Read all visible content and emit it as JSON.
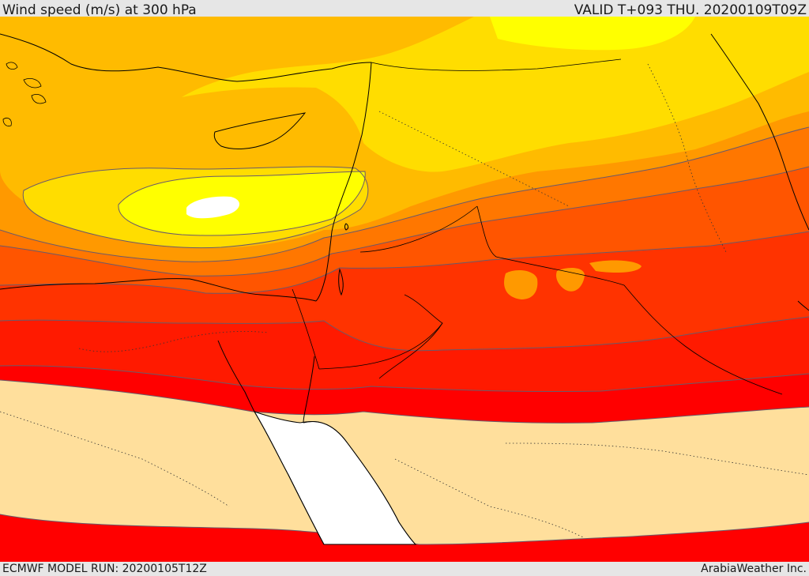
{
  "header": {
    "title": "Wind speed (m/s) at 300 hPa",
    "valid_time": "VALID T+093 THU. 20200109T09Z"
  },
  "footer": {
    "model_run": "ECMWF MODEL RUN: 20200105T12Z",
    "credit": "ArabiaWeather Inc."
  },
  "map": {
    "field": "wind speed at 300 hPa",
    "region": "Eastern Mediterranean, Levant, Egypt, Red Sea, Arabian Peninsula",
    "palette": {
      "calm": "#ffffff",
      "light": "#ffdf9c",
      "yellow": "#ffff00",
      "gold": "#ffdd00",
      "amber": "#ffbb00",
      "orange": "#ff9900",
      "dark_orange": "#ff7700",
      "red_orange": "#ff5500",
      "orange_red": "#ff3300",
      "bright_red": "#ff1a00",
      "red": "#ff0000",
      "sea": "#ffffff"
    }
  }
}
